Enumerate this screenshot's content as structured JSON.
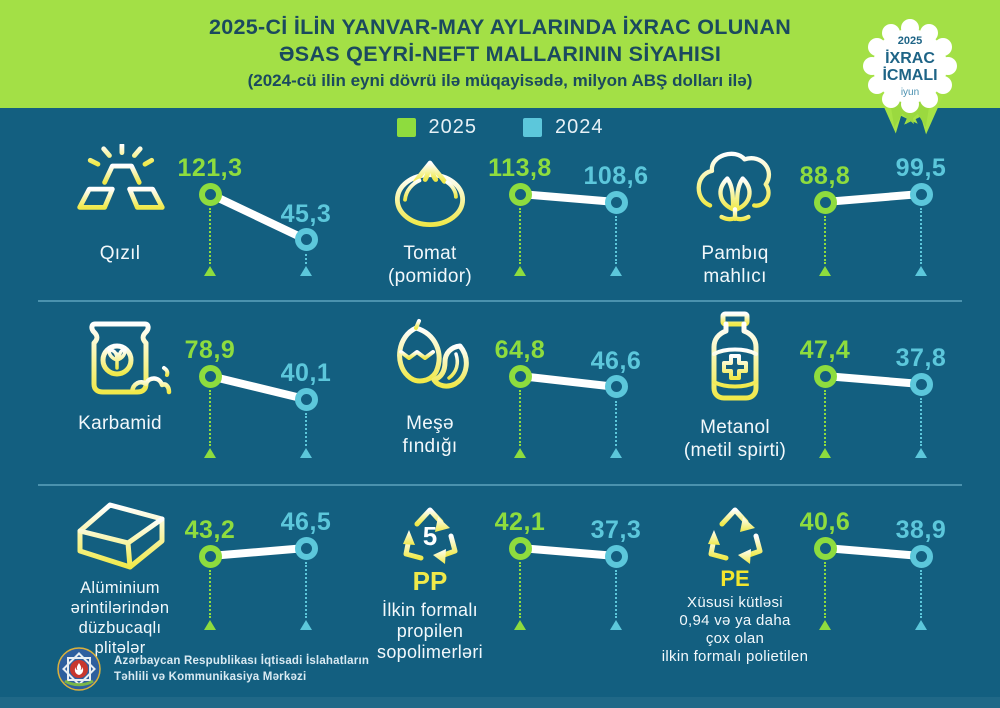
{
  "header": {
    "title_line1": "2025-Cİ İLİN YANVAR-MAY AYLARINDA İXRAC OLUNAN",
    "title_line2": "ƏSAS QEYRİ-NEFT MALLARININ SİYAHISI",
    "title_line3": "(2024-cü ilin eyni dövrü ilə müqayisədə, milyon ABŞ dolları ilə)"
  },
  "badge": {
    "year": "2025",
    "line1": "İXRAC",
    "line2": "İCMALI",
    "month": "iyun"
  },
  "legend": [
    {
      "label": "2025",
      "color": "#8edc3e"
    },
    {
      "label": "2024",
      "color": "#5cc7db"
    }
  ],
  "footer": {
    "org_line1": "Azərbaycan Respublikası İqtisadi İslahatların",
    "org_line2": "Təhlili və Kommunikasiya Mərkəzi"
  },
  "colors": {
    "background": "#135f80",
    "header_green": "#a3e046",
    "accent_2025": "#8edc3e",
    "accent_2024": "#5cc7db",
    "icon_yellow": "#f0e94a",
    "line_white": "#ffffff"
  },
  "chart_data": {
    "type": "line",
    "title": "2025-ci ilin yanvar-may aylarında ixrac olunan əsas qeyri-neft mallarının siyahısı",
    "subtitle": "2024-cü ilin eyni dövrü ilə müqayisədə",
    "unit": "milyon ABŞ dolları",
    "series_years": [
      "2025",
      "2024"
    ],
    "legend_position": "top-center",
    "items": [
      {
        "name": "Qızıl",
        "icon": "gold-bars-icon",
        "v2025": 121.3,
        "v2024": 45.3,
        "label_2025": "121,3",
        "label_2024": "45,3"
      },
      {
        "name": "Tomat\n(pomidor)",
        "icon": "tomato-icon",
        "v2025": 113.8,
        "v2024": 108.6,
        "label_2025": "113,8",
        "label_2024": "108,6"
      },
      {
        "name": "Pambıq\nmahlıcı",
        "icon": "cotton-icon",
        "v2025": 88.8,
        "v2024": 99.5,
        "label_2025": "88,8",
        "label_2024": "99,5"
      },
      {
        "name": "Karbamid",
        "icon": "fertilizer-bag-icon",
        "v2025": 78.9,
        "v2024": 40.1,
        "label_2025": "78,9",
        "label_2024": "40,1"
      },
      {
        "name": "Meşə\nfındığı",
        "icon": "hazelnut-icon",
        "v2025": 64.8,
        "v2024": 46.6,
        "label_2025": "64,8",
        "label_2024": "46,6"
      },
      {
        "name": "Metanol\n(metil spirti)",
        "icon": "methanol-bottle-icon",
        "v2025": 47.4,
        "v2024": 37.8,
        "label_2025": "47,4",
        "label_2024": "37,8"
      },
      {
        "name": "Alüminium\nərintilərindən\ndüzbucaqlı\nplitələr",
        "icon": "aluminium-plate-icon",
        "v2025": 43.2,
        "v2024": 46.5,
        "label_2025": "43,2",
        "label_2024": "46,5"
      },
      {
        "name": "İlkin formalı\npropilen\nsopolimerləri",
        "icon": "recycle-pp-icon",
        "recycle_number": "5",
        "recycle_code": "PP",
        "v2025": 42.1,
        "v2024": 37.3,
        "label_2025": "42,1",
        "label_2024": "37,3"
      },
      {
        "name": "Xüsusi kütləsi\n0,94 və ya daha\nçox olan\nilkin formalı polietilen",
        "icon": "recycle-pe-icon",
        "recycle_code": "PE",
        "v2025": 40.6,
        "v2024": 38.9,
        "label_2025": "40,6",
        "label_2024": "38,9"
      }
    ]
  }
}
